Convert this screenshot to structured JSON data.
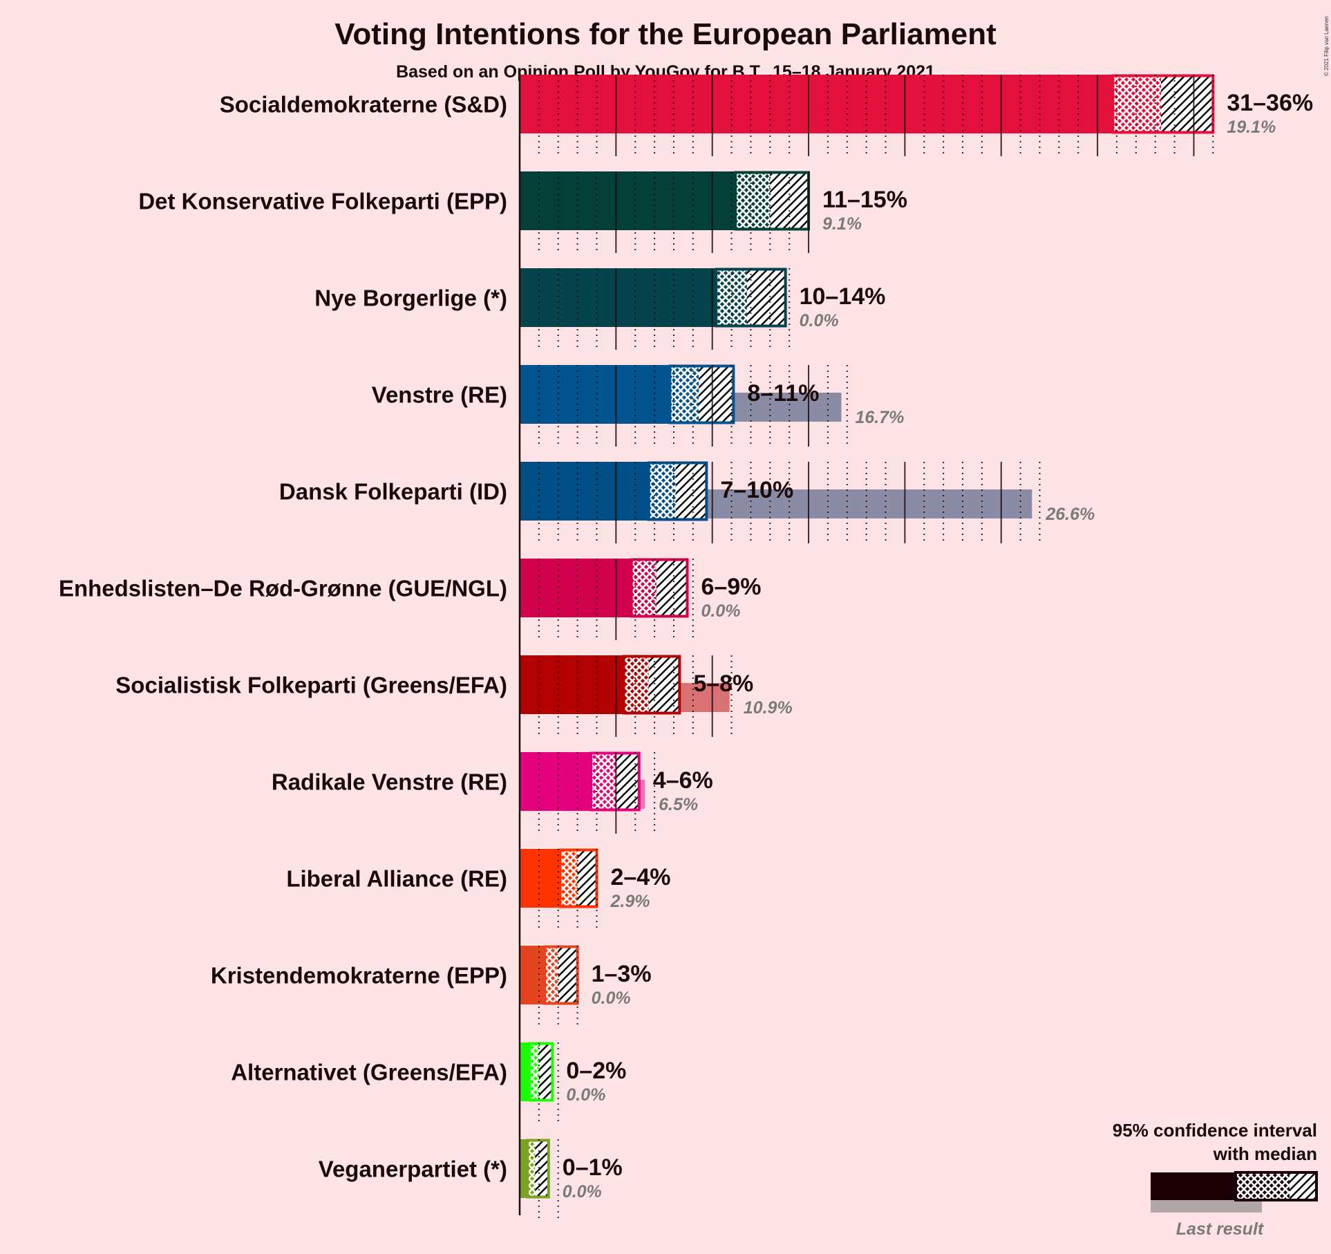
{
  "header": {
    "title": "Voting Intentions for the European Parliament",
    "subtitle": "Based on an Opinion Poll by YouGov for B.T., 15–18 January 2021",
    "copyright": "© 2021 Filip van Laenen"
  },
  "legend": {
    "line1": "95% confidence interval",
    "line2": "with median",
    "last_result": "Last result"
  },
  "chart_data": {
    "type": "bar",
    "orientation": "horizontal",
    "title": "Voting Intentions for the European Parliament",
    "subtitle": "Based on an Opinion Poll by YouGov for B.T., 15–18 January 2021",
    "unit": "%",
    "grid": true,
    "legend_position": "bottom-right",
    "categories": [
      "Socialdemokraterne (S&D)",
      "Det Konservative Folkeparti (EPP)",
      "Nye Borgerlige (*)",
      "Venstre (RE)",
      "Dansk Folkeparti (ID)",
      "Enhedslisten–De Rød-Grønne (GUE/NGL)",
      "Socialistisk Folkeparti (Greens/EFA)",
      "Radikale Venstre (RE)",
      "Liberal Alliance (RE)",
      "Kristendemokraterne (EPP)",
      "Alternativet (Greens/EFA)",
      "Veganerpartiet (*)"
    ],
    "parties": [
      {
        "name": "Socialdemokraterne (S&D)",
        "range_label": "31–36%",
        "last_label": "19.1%",
        "low": 30.8,
        "median": 33.3,
        "high": 36.0,
        "last": 19.1,
        "color": "#E3103E",
        "dark": false
      },
      {
        "name": "Det Konservative Folkeparti (EPP)",
        "range_label": "11–15%",
        "last_label": "9.1%",
        "low": 11.2,
        "median": 13.0,
        "high": 15.0,
        "last": 9.1,
        "color": "#054038",
        "dark": true
      },
      {
        "name": "Nye Borgerlige (*)",
        "range_label": "10–14%",
        "last_label": "0.0%",
        "low": 10.2,
        "median": 11.8,
        "high": 13.8,
        "last": 0.0,
        "color": "#05444D",
        "dark": true
      },
      {
        "name": "Venstre (RE)",
        "range_label": "8–11%",
        "last_label": "16.7%",
        "low": 7.8,
        "median": 9.3,
        "high": 11.1,
        "last": 16.7,
        "color": "#01548E",
        "dark": true
      },
      {
        "name": "Dansk Folkeparti (ID)",
        "range_label": "7–10%",
        "last_label": "26.6%",
        "low": 6.7,
        "median": 8.1,
        "high": 9.7,
        "last": 26.6,
        "color": "#024E87",
        "dark": true
      },
      {
        "name": "Enhedslisten–De Rød-Grønne (GUE/NGL)",
        "range_label": "6–9%",
        "last_label": "0.0%",
        "low": 5.8,
        "median": 7.1,
        "high": 8.7,
        "last": 0.0,
        "color": "#D0004D",
        "dark": false
      },
      {
        "name": "Socialistisk Folkeparti (Greens/EFA)",
        "range_label": "5–8%",
        "last_label": "10.9%",
        "low": 5.4,
        "median": 6.7,
        "high": 8.3,
        "last": 10.9,
        "color": "#B30000",
        "dark": false
      },
      {
        "name": "Radikale Venstre (RE)",
        "range_label": "4–6%",
        "last_label": "6.5%",
        "low": 3.7,
        "median": 5.0,
        "high": 6.2,
        "last": 6.5,
        "color": "#E5007D",
        "dark": false
      },
      {
        "name": "Liberal Alliance (RE)",
        "range_label": "2–4%",
        "last_label": "2.9%",
        "low": 2.1,
        "median": 3.0,
        "high": 4.0,
        "last": 2.9,
        "color": "#FF3300",
        "dark": false
      },
      {
        "name": "Kristendemokraterne (EPP)",
        "range_label": "1–3%",
        "last_label": "0.0%",
        "low": 1.3,
        "median": 2.0,
        "high": 3.0,
        "last": 0.0,
        "color": "#E5451E",
        "dark": false
      },
      {
        "name": "Alternativet (Greens/EFA)",
        "range_label": "0–2%",
        "last_label": "0.0%",
        "low": 0.5,
        "median": 1.0,
        "high": 1.7,
        "last": 0.0,
        "color": "#1AFF00",
        "dark": false
      },
      {
        "name": "Veganerpartiet (*)",
        "range_label": "0–1%",
        "last_label": "0.0%",
        "low": 0.4,
        "median": 0.8,
        "high": 1.5,
        "last": 0.0,
        "color": "#7AA323",
        "dark": false
      }
    ],
    "xlim": [
      0,
      36
    ]
  }
}
